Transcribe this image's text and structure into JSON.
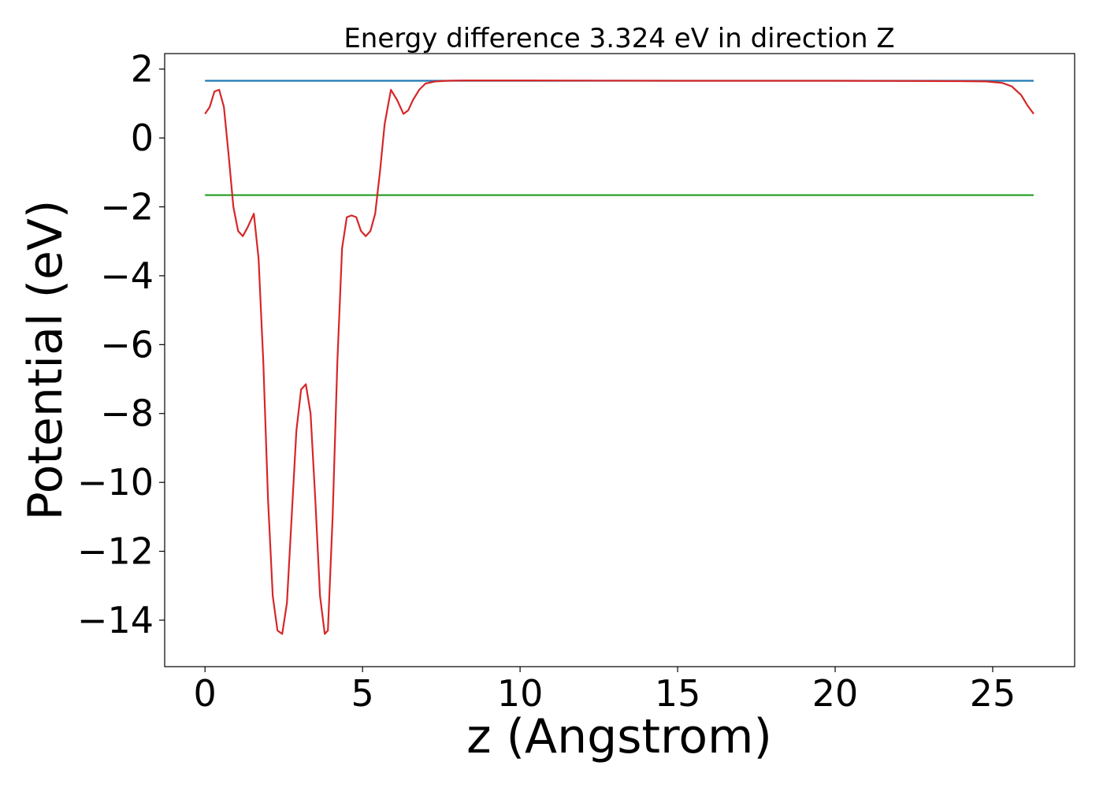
{
  "chart_data": {
    "type": "line",
    "title": "Energy difference 3.324 eV in direction Z",
    "xlabel": "z (Angstrom)",
    "ylabel": "Potential (eV)",
    "xlim": [
      -1.28,
      27.6
    ],
    "ylim": [
      -15.35,
      2.45
    ],
    "xticks": [
      0,
      5,
      10,
      15,
      20,
      25
    ],
    "xtick_labels": [
      "0",
      "5",
      "10",
      "15",
      "20",
      "25"
    ],
    "yticks": [
      2,
      0,
      -2,
      -4,
      -6,
      -8,
      -10,
      -12,
      -14
    ],
    "ytick_labels": [
      "2",
      "0",
      "−2",
      "−4",
      "−6",
      "−8",
      "−10",
      "−12",
      "−14"
    ],
    "grid": false,
    "series": [
      {
        "role": "upper-reference",
        "color": "#1f77b4",
        "x": [
          0,
          26.3
        ],
        "y": [
          1.66,
          1.66
        ]
      },
      {
        "role": "lower-reference",
        "color": "#2ca02c",
        "x": [
          0,
          26.3
        ],
        "y": [
          -1.66,
          -1.66
        ]
      },
      {
        "role": "potential",
        "color": "#d62728",
        "x": [
          0,
          0.15,
          0.3,
          0.45,
          0.6,
          0.75,
          0.9,
          1.05,
          1.2,
          1.35,
          1.55,
          1.7,
          1.85,
          2.0,
          2.15,
          2.3,
          2.45,
          2.6,
          2.75,
          2.9,
          3.05,
          3.2,
          3.35,
          3.5,
          3.65,
          3.8,
          3.9,
          4.05,
          4.2,
          4.35,
          4.5,
          4.65,
          4.8,
          4.95,
          5.1,
          5.25,
          5.4,
          5.55,
          5.7,
          5.9,
          6.1,
          6.3,
          6.45,
          6.6,
          6.8,
          7.0,
          7.3,
          7.7,
          8.2,
          9.0,
          10.0,
          15.0,
          20.0,
          24.0,
          24.8,
          25.3,
          25.6,
          25.9,
          26.1,
          26.3
        ],
        "y": [
          0.7,
          0.9,
          1.35,
          1.4,
          0.9,
          -0.5,
          -2.0,
          -2.7,
          -2.85,
          -2.6,
          -2.2,
          -3.5,
          -6.5,
          -10.5,
          -13.3,
          -14.3,
          -14.4,
          -13.5,
          -11.0,
          -8.5,
          -7.3,
          -7.15,
          -8.0,
          -10.5,
          -13.3,
          -14.4,
          -14.3,
          -11.0,
          -6.5,
          -3.2,
          -2.3,
          -2.25,
          -2.3,
          -2.7,
          -2.85,
          -2.7,
          -2.2,
          -1.0,
          0.4,
          1.4,
          1.1,
          0.7,
          0.8,
          1.1,
          1.4,
          1.58,
          1.64,
          1.66,
          1.67,
          1.67,
          1.67,
          1.66,
          1.66,
          1.65,
          1.64,
          1.6,
          1.5,
          1.25,
          0.95,
          0.7
        ]
      }
    ]
  }
}
